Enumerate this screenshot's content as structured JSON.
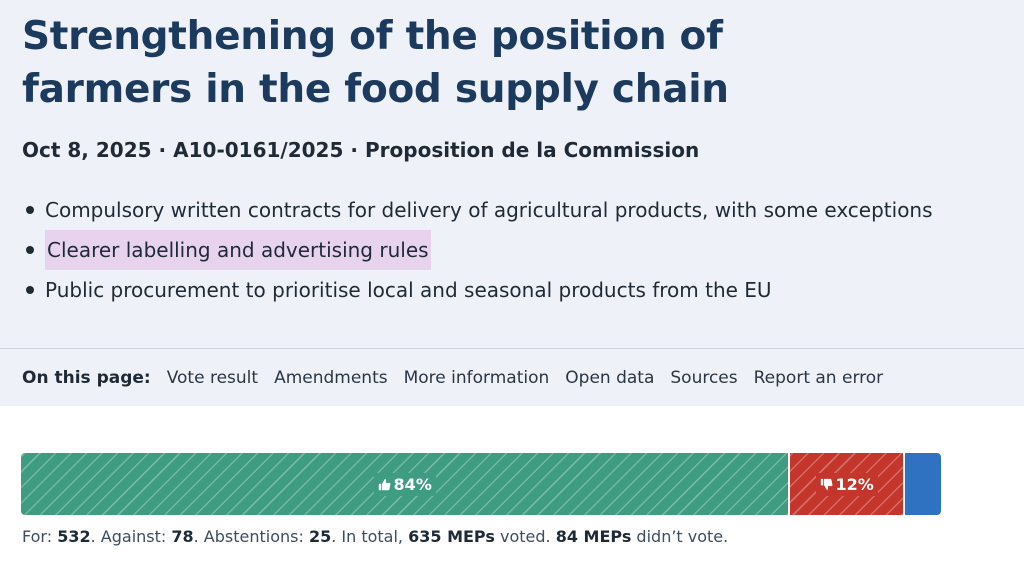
{
  "page": {
    "title": "Strengthening of the position of farmers in the food supply chain",
    "meta": {
      "date": "Oct 8, 2025",
      "reference": "A10-0161/2025",
      "type": "Proposition de la Commission",
      "separator": "·"
    },
    "summary_points": [
      "Compulsory written contracts for delivery of agricultural products, with some exceptions",
      "Clearer labelling and advertising rules",
      "Public procurement to prioritise local and seasonal products from the EU"
    ]
  },
  "on_this_page": {
    "label": "On this page:",
    "links": [
      "Vote result",
      "Amendments",
      "More information",
      "Open data",
      "Sources",
      "Report an error"
    ]
  },
  "vote": {
    "for_count": 532,
    "against_count": 78,
    "abstentions_count": 25,
    "total_voted": 635,
    "did_not_vote": 84,
    "for_percent_label": "84%",
    "against_percent_label": "12%",
    "colors": {
      "for": "#3e9c80",
      "against": "#c4362b",
      "abstain": "#2f72c2"
    },
    "summary": {
      "for_label": "For: ",
      "for_value": "532",
      "against_label": ". Against: ",
      "against_value": "78",
      "abst_label": ". Abstentions: ",
      "abst_value": "25",
      "total_label": ". In total, ",
      "total_value": "635 MEPs",
      "voted_label": " voted. ",
      "novote_value": "84 MEPs",
      "novote_label": " didn’t vote."
    }
  },
  "icons": {
    "for": "thumbs-up-icon",
    "against": "thumbs-down-icon"
  }
}
